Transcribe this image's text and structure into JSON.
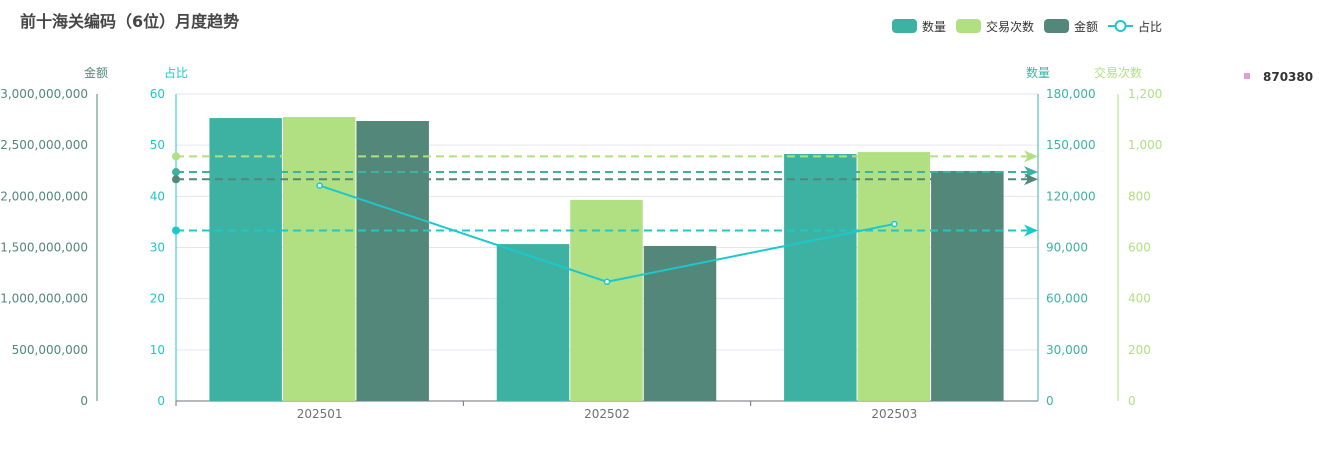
{
  "chart_data": {
    "type": "bar",
    "title": "前十海关编码（6位）月度趋势",
    "categories": [
      "202501",
      "202502",
      "202503"
    ],
    "series": [
      {
        "name": "数量",
        "kind": "bar",
        "axis": "数量",
        "color": "#3eb2a2",
        "values": [
          165900,
          92000,
          144800
        ]
      },
      {
        "name": "交易次数",
        "kind": "bar",
        "axis": "交易次数",
        "color": "#b1e082",
        "values": [
          1110,
          786,
          973
        ]
      },
      {
        "name": "金额",
        "kind": "bar",
        "axis": "金额",
        "color": "#52877a",
        "values": [
          2736000000,
          1515000000,
          2248000000
        ]
      },
      {
        "name": "占比",
        "kind": "line",
        "axis": "占比",
        "color": "#1cc8cc",
        "values": [
          42.1,
          23.3,
          34.6
        ]
      }
    ],
    "mean_lines": "dashed average line per series",
    "axes": {
      "金额": {
        "label": "金额",
        "position": "left-outer",
        "range": [
          0,
          3000000000
        ],
        "ticks": [
          "0",
          "500,000,000",
          "1,000,000,000",
          "1,500,000,000",
          "2,000,000,000",
          "2,500,000,000",
          "3,000,000,000"
        ],
        "color": "#52877a"
      },
      "占比": {
        "label": "占比",
        "position": "left-inner",
        "range": [
          0,
          60
        ],
        "ticks": [
          "0",
          "10",
          "20",
          "30",
          "40",
          "50",
          "60"
        ],
        "color": "#1cc8cc"
      },
      "数量": {
        "label": "数量",
        "position": "right-inner",
        "range": [
          0,
          180000
        ],
        "ticks": [
          "0",
          "30,000",
          "60,000",
          "90,000",
          "120,000",
          "150,000",
          "180,000"
        ],
        "color": "#3eb2a2"
      },
      "交易次数": {
        "label": "交易次数",
        "position": "right-outer",
        "range": [
          0,
          1200
        ],
        "ticks": [
          "0",
          "200",
          "400",
          "600",
          "800",
          "1,000",
          "1,200"
        ],
        "color": "#b1e082"
      }
    },
    "grid": true,
    "legend": {
      "placement": "top-right",
      "items": [
        "数量",
        "交易次数",
        "金额",
        "占比"
      ]
    },
    "extra_legend": {
      "label": "870380",
      "color": "#dda0dd"
    }
  }
}
